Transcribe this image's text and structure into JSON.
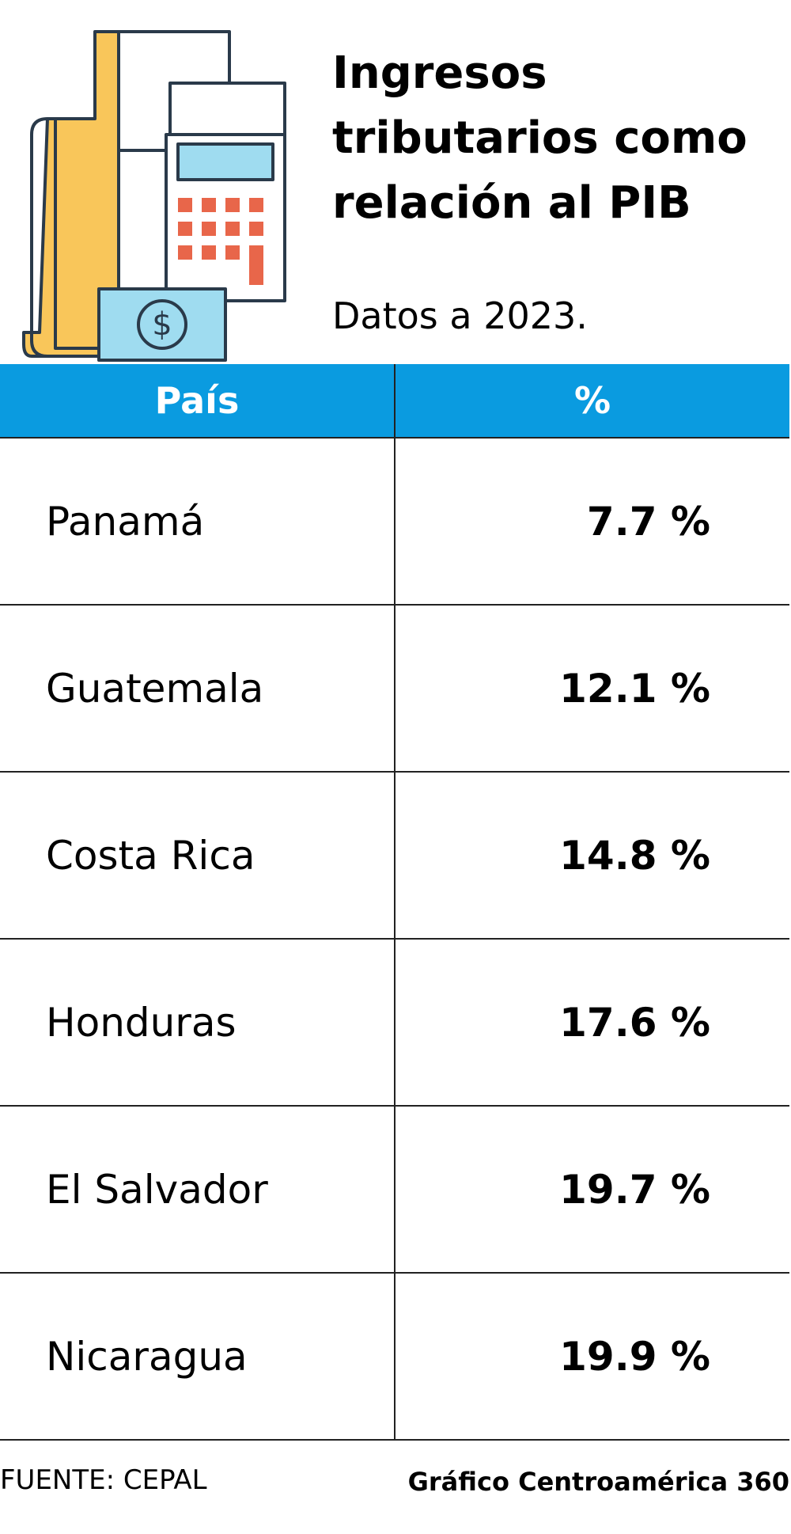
{
  "header": {
    "title": "Ingresos tributarios como relación al PIB",
    "subtitle": "Datos a 2023."
  },
  "table": {
    "columns": [
      "País",
      "%"
    ],
    "rows": [
      [
        "Panamá",
        "7.7 %"
      ],
      [
        "Guatemala",
        "12.1 %"
      ],
      [
        "Costa Rica",
        "14.8 %"
      ],
      [
        "Honduras",
        "17.6 %"
      ],
      [
        "El Salvador",
        "19.7 %"
      ],
      [
        "Nicaragua",
        "19.9 %"
      ]
    ]
  },
  "footer": {
    "source": "FUENTE: CEPAL",
    "credit": "Gráfico Centroamérica 360"
  }
}
